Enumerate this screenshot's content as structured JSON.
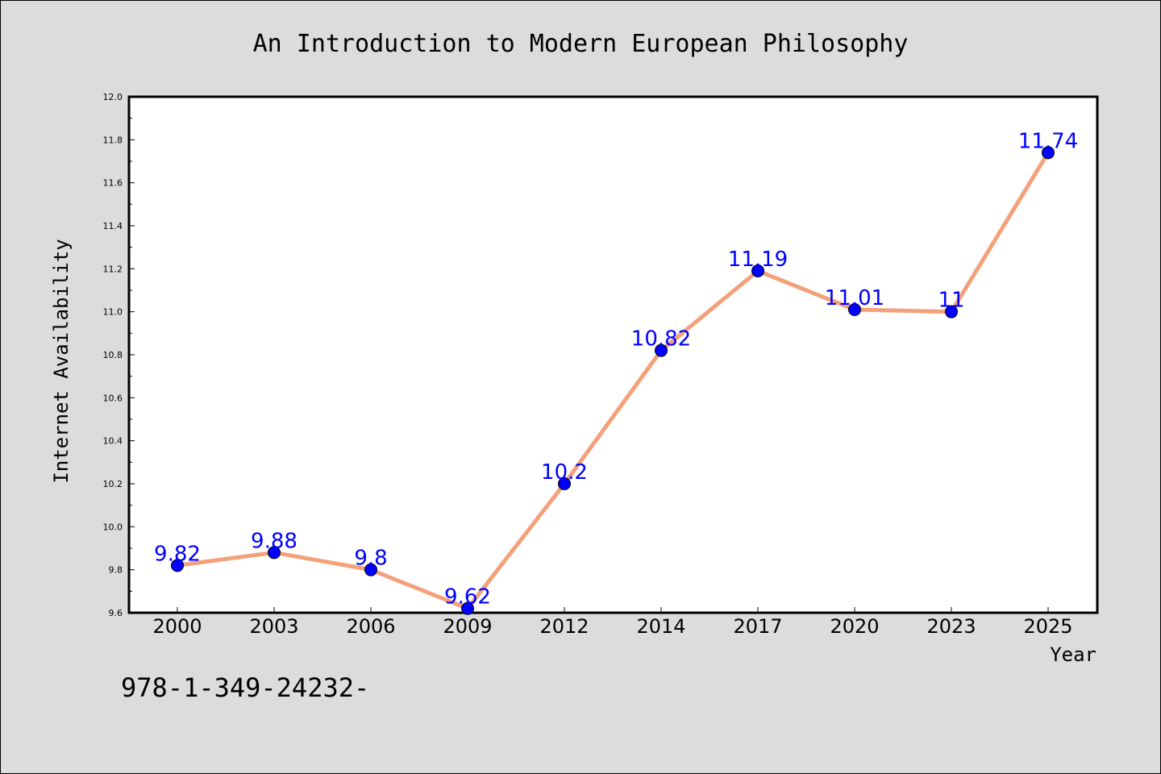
{
  "chart_data": {
    "type": "line",
    "title": "An Introduction to Modern European Philosophy",
    "xlabel": "Year",
    "ylabel": "Internet Availability",
    "categories": [
      "2000",
      "2003",
      "2006",
      "2009",
      "2012",
      "2014",
      "2017",
      "2020",
      "2023",
      "2025"
    ],
    "series": [
      {
        "values": [
          9.82,
          9.88,
          9.8,
          9.62,
          10.2,
          10.82,
          11.19,
          11.01,
          11,
          11.74
        ],
        "labels": [
          "9.82",
          "9.88",
          "9.8",
          "9.62",
          "10.2",
          "10.82",
          "11.19",
          "11.01",
          "11",
          "11.74"
        ],
        "line_color": "#f4a07a",
        "marker_color": "#0000ff"
      }
    ],
    "ylim": [
      9.6,
      12.0
    ],
    "yticks": [
      "9.6",
      "9.8",
      "10.0",
      "10.2",
      "10.4",
      "10.6",
      "10.8",
      "11.0",
      "11.2",
      "11.4",
      "11.6",
      "11.8",
      "12.0"
    ],
    "grid": false
  },
  "footer": {
    "isbn": "978-1-349-24232-"
  }
}
